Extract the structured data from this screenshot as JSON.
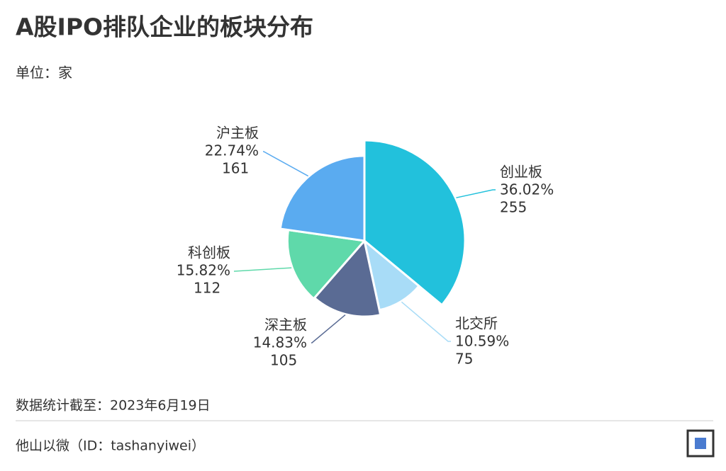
{
  "chart_data": {
    "type": "pie",
    "title": "A股IPO排队企业的板块分布",
    "subtitle": "单位：家",
    "categories": [
      "创业板",
      "北交所",
      "深主板",
      "科创板",
      "沪主板"
    ],
    "values": [
      255,
      75,
      105,
      112,
      161
    ],
    "shares": [
      36.02,
      10.59,
      14.83,
      15.82,
      22.74
    ],
    "share_labels": [
      "36.02%",
      "10.59%",
      "14.83%",
      "15.82%",
      "22.74%"
    ],
    "colors": [
      "#22c1dc",
      "#a8dcf7",
      "#5a6b94",
      "#5fd9aa",
      "#5aabf0"
    ],
    "note": "数据统计截至：2023年6月19日",
    "source": "他山以微（ID：tashanyiwei）"
  }
}
